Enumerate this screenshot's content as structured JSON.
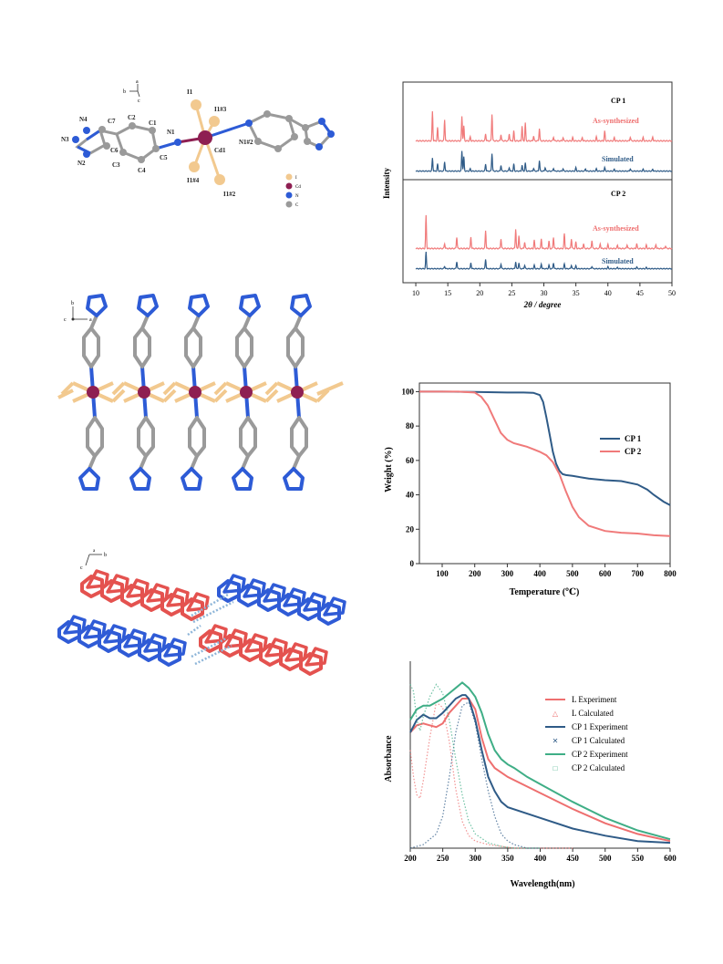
{
  "colors": {
    "red": "#ee6f6f",
    "blue": "#2f5b87",
    "green": "#3fae86",
    "pink": "#f07a7a",
    "cd": "#8e1f52",
    "iodine": "#f2c98f",
    "nitrogen": "#2d5bd6",
    "carbon": "#9a9a9a",
    "pack_red": "#e4524f",
    "pack_blue": "#2f5bd6"
  },
  "structure1": {
    "atoms": {
      "i1": "I1",
      "i1_3": "I1#3",
      "i1_4": "I1#4",
      "i1_2": "I1#2",
      "cd1": "Cd1",
      "n1": "N1",
      "n1_2": "N1#2",
      "n4": "N4",
      "n3": "N3",
      "n2": "N2",
      "c7": "C7",
      "c6": "C6",
      "c2": "C2",
      "c1": "C1",
      "c3": "C3",
      "c4": "C4",
      "c5": "C5"
    },
    "legend": [
      {
        "label": "I"
      },
      {
        "label": "Cd"
      },
      {
        "label": "N"
      },
      {
        "label": "C"
      }
    ],
    "axes": {
      "a": "a",
      "b": "b",
      "c": "c"
    }
  },
  "structure2": {
    "axes": {
      "b": "b",
      "c": "c",
      "a": "a"
    }
  },
  "structure3": {
    "axes": {
      "b": "b",
      "c": "c",
      "a": "a"
    }
  },
  "chart_data": [
    {
      "type": "line",
      "ylabel": "Intensity",
      "xlabel": "2θ / degree",
      "xlim": [
        8,
        50
      ],
      "xticks": [
        10,
        15,
        20,
        25,
        30,
        35,
        40,
        45,
        50
      ],
      "panels": [
        {
          "title": "CP 1",
          "series": [
            {
              "name": "As-synthesized",
              "peaks": [
                [
                  12.6,
                  0.9
                ],
                [
                  13.4,
                  0.4
                ],
                [
                  14.5,
                  0.65
                ],
                [
                  17.2,
                  0.75
                ],
                [
                  17.5,
                  0.45
                ],
                [
                  18.5,
                  0.12
                ],
                [
                  20.9,
                  0.22
                ],
                [
                  21.9,
                  0.82
                ],
                [
                  23.3,
                  0.2
                ],
                [
                  24.6,
                  0.22
                ],
                [
                  25.3,
                  0.3
                ],
                [
                  26.6,
                  0.45
                ],
                [
                  27.1,
                  0.55
                ],
                [
                  28.4,
                  0.15
                ],
                [
                  29.3,
                  0.38
                ],
                [
                  31.5,
                  0.12
                ],
                [
                  33.0,
                  0.1
                ],
                [
                  34.5,
                  0.1
                ],
                [
                  36.0,
                  0.1
                ],
                [
                  38.2,
                  0.12
                ],
                [
                  39.5,
                  0.3
                ],
                [
                  41.0,
                  0.1
                ],
                [
                  43.5,
                  0.12
                ],
                [
                  45.5,
                  0.1
                ],
                [
                  47.0,
                  0.12
                ]
              ]
            },
            {
              "name": "Simulated",
              "peaks": [
                [
                  12.6,
                  0.55
                ],
                [
                  13.4,
                  0.3
                ],
                [
                  14.5,
                  0.4
                ],
                [
                  17.2,
                  0.85
                ],
                [
                  17.5,
                  0.6
                ],
                [
                  18.5,
                  0.1
                ],
                [
                  20.9,
                  0.3
                ],
                [
                  21.9,
                  0.75
                ],
                [
                  23.3,
                  0.25
                ],
                [
                  24.6,
                  0.15
                ],
                [
                  25.3,
                  0.3
                ],
                [
                  26.6,
                  0.25
                ],
                [
                  27.1,
                  0.35
                ],
                [
                  28.4,
                  0.12
                ],
                [
                  29.3,
                  0.45
                ],
                [
                  30.2,
                  0.15
                ],
                [
                  31.5,
                  0.12
                ],
                [
                  33.0,
                  0.1
                ],
                [
                  35.0,
                  0.15
                ],
                [
                  36.5,
                  0.1
                ],
                [
                  38.2,
                  0.1
                ],
                [
                  39.5,
                  0.15
                ],
                [
                  41.0,
                  0.08
                ],
                [
                  43.5,
                  0.1
                ],
                [
                  45.5,
                  0.08
                ],
                [
                  47.0,
                  0.08
                ]
              ]
            }
          ]
        },
        {
          "title": "CP 2",
          "series": [
            {
              "name": "As-synthesized",
              "peaks": [
                [
                  11.6,
                  1.0
                ],
                [
                  14.5,
                  0.15
                ],
                [
                  16.4,
                  0.35
                ],
                [
                  18.6,
                  0.35
                ],
                [
                  20.9,
                  0.55
                ],
                [
                  23.3,
                  0.3
                ],
                [
                  25.6,
                  0.6
                ],
                [
                  26.1,
                  0.4
                ],
                [
                  27.0,
                  0.2
                ],
                [
                  28.5,
                  0.25
                ],
                [
                  29.6,
                  0.3
                ],
                [
                  30.8,
                  0.22
                ],
                [
                  31.5,
                  0.35
                ],
                [
                  33.2,
                  0.45
                ],
                [
                  34.3,
                  0.3
                ],
                [
                  35.0,
                  0.2
                ],
                [
                  36.2,
                  0.15
                ],
                [
                  37.5,
                  0.25
                ],
                [
                  38.8,
                  0.15
                ],
                [
                  40.0,
                  0.12
                ],
                [
                  41.5,
                  0.1
                ],
                [
                  43.0,
                  0.12
                ],
                [
                  44.5,
                  0.15
                ],
                [
                  46.0,
                  0.1
                ],
                [
                  47.5,
                  0.12
                ],
                [
                  49.0,
                  0.08
                ]
              ]
            },
            {
              "name": "Simulated",
              "peaks": [
                [
                  11.6,
                  0.7
                ],
                [
                  14.5,
                  0.1
                ],
                [
                  16.4,
                  0.3
                ],
                [
                  18.6,
                  0.25
                ],
                [
                  20.9,
                  0.4
                ],
                [
                  23.3,
                  0.2
                ],
                [
                  25.6,
                  0.3
                ],
                [
                  26.1,
                  0.25
                ],
                [
                  27.0,
                  0.15
                ],
                [
                  28.5,
                  0.15
                ],
                [
                  29.6,
                  0.2
                ],
                [
                  30.8,
                  0.15
                ],
                [
                  31.5,
                  0.25
                ],
                [
                  33.2,
                  0.2
                ],
                [
                  34.3,
                  0.15
                ],
                [
                  35.0,
                  0.12
                ],
                [
                  37.5,
                  0.1
                ],
                [
                  40.0,
                  0.08
                ],
                [
                  41.5,
                  0.06
                ],
                [
                  44.5,
                  0.08
                ],
                [
                  46.0,
                  0.05
                ]
              ]
            }
          ]
        }
      ]
    },
    {
      "type": "line",
      "xlabel": "Temperature (℃)",
      "ylabel": "Weight (%)",
      "xlim": [
        30,
        800
      ],
      "ylim": [
        0,
        105
      ],
      "xticks": [
        100,
        200,
        300,
        400,
        500,
        600,
        700,
        800
      ],
      "yticks": [
        0,
        20,
        40,
        60,
        80,
        100
      ],
      "legend_position": "right",
      "series": [
        {
          "name": "CP 1",
          "x": [
            30,
            100,
            200,
            300,
            350,
            380,
            400,
            410,
            420,
            430,
            440,
            450,
            460,
            470,
            480,
            500,
            550,
            600,
            650,
            700,
            730,
            750,
            780,
            800
          ],
          "y": [
            100,
            100,
            99.8,
            99.5,
            99.5,
            99.3,
            98,
            94,
            85,
            75,
            65,
            58,
            54,
            52,
            51.5,
            51,
            49.5,
            48.5,
            48,
            46,
            43,
            40,
            36,
            34
          ]
        },
        {
          "name": "CP 2",
          "x": [
            30,
            100,
            150,
            200,
            220,
            240,
            260,
            280,
            300,
            320,
            340,
            360,
            380,
            400,
            420,
            440,
            460,
            480,
            500,
            520,
            550,
            600,
            650,
            700,
            750,
            800
          ],
          "y": [
            100,
            100,
            100,
            99.5,
            97,
            92,
            84,
            76,
            72,
            70,
            69,
            68,
            66.5,
            65,
            63,
            59,
            52,
            42,
            33,
            27,
            22,
            19,
            18,
            17.5,
            16.5,
            16
          ]
        }
      ]
    },
    {
      "type": "line",
      "xlabel": "Wavelength(nm)",
      "ylabel": "Absorbance",
      "xlim": [
        200,
        600
      ],
      "ylim": [
        0,
        1.05
      ],
      "xticks": [
        200,
        250,
        300,
        350,
        400,
        450,
        500,
        550,
        600
      ],
      "legend_position": "top-right",
      "series": [
        {
          "name": "L Experiment",
          "style": "solid",
          "color": "red",
          "x": [
            200,
            210,
            220,
            230,
            240,
            250,
            260,
            270,
            280,
            290,
            300,
            310,
            320,
            330,
            350,
            400,
            450,
            500,
            550,
            600
          ],
          "y": [
            0.65,
            0.69,
            0.7,
            0.69,
            0.68,
            0.7,
            0.76,
            0.8,
            0.84,
            0.84,
            0.78,
            0.62,
            0.5,
            0.45,
            0.4,
            0.31,
            0.22,
            0.14,
            0.08,
            0.04
          ]
        },
        {
          "name": "L Calculated",
          "style": "dotted",
          "color": "red",
          "x": [
            200,
            205,
            210,
            215,
            220,
            230,
            240,
            250,
            260,
            270,
            280,
            290,
            300,
            320,
            340,
            360,
            400,
            450
          ],
          "y": [
            0.55,
            0.4,
            0.3,
            0.28,
            0.38,
            0.62,
            0.82,
            0.79,
            0.6,
            0.33,
            0.15,
            0.07,
            0.04,
            0.02,
            0.01,
            0.0,
            0.0,
            0.0
          ]
        },
        {
          "name": "CP 1 Experiment",
          "style": "solid",
          "color": "blue",
          "x": [
            200,
            210,
            220,
            230,
            240,
            250,
            260,
            270,
            280,
            285,
            290,
            300,
            310,
            320,
            330,
            340,
            350,
            400,
            450,
            500,
            550,
            600
          ],
          "y": [
            0.65,
            0.72,
            0.75,
            0.73,
            0.73,
            0.76,
            0.8,
            0.84,
            0.86,
            0.86,
            0.84,
            0.72,
            0.55,
            0.4,
            0.32,
            0.26,
            0.23,
            0.17,
            0.11,
            0.07,
            0.04,
            0.03
          ]
        },
        {
          "name": "CP 1 Calculated",
          "style": "dotted",
          "color": "blue",
          "x": [
            200,
            220,
            240,
            250,
            260,
            270,
            280,
            290,
            300,
            310,
            320,
            330,
            340,
            350,
            360,
            380,
            400
          ],
          "y": [
            0.0,
            0.02,
            0.08,
            0.18,
            0.4,
            0.65,
            0.8,
            0.82,
            0.7,
            0.5,
            0.32,
            0.18,
            0.08,
            0.04,
            0.02,
            0.0,
            0.0
          ]
        },
        {
          "name": "CP 2 Experiment",
          "style": "solid",
          "color": "green",
          "x": [
            200,
            210,
            220,
            230,
            240,
            250,
            260,
            270,
            280,
            290,
            300,
            310,
            320,
            330,
            340,
            350,
            360,
            380,
            400,
            450,
            500,
            550,
            600
          ],
          "y": [
            0.72,
            0.78,
            0.8,
            0.8,
            0.82,
            0.84,
            0.87,
            0.9,
            0.93,
            0.9,
            0.85,
            0.76,
            0.64,
            0.55,
            0.5,
            0.47,
            0.45,
            0.4,
            0.36,
            0.26,
            0.17,
            0.1,
            0.05
          ]
        },
        {
          "name": "CP 2 Calculated",
          "style": "dotted",
          "color": "green",
          "x": [
            200,
            205,
            210,
            215,
            220,
            230,
            240,
            250,
            260,
            270,
            280,
            290,
            300,
            320,
            340,
            360,
            400
          ],
          "y": [
            0.92,
            0.88,
            0.72,
            0.66,
            0.74,
            0.85,
            0.92,
            0.87,
            0.72,
            0.5,
            0.3,
            0.15,
            0.08,
            0.03,
            0.01,
            0.0,
            0.0
          ]
        }
      ]
    }
  ]
}
